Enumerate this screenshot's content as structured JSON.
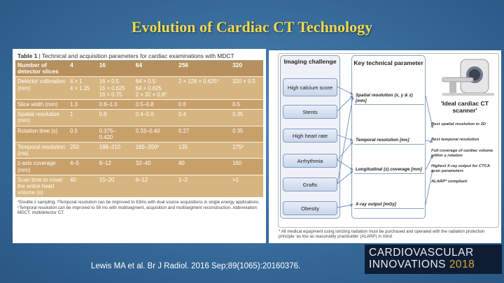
{
  "slide": {
    "title": "Evolution of Cardiac CT Technology",
    "reference": "Lewis MA et al. Br J Radiol. 2016 Sep;89(1065):20160376."
  },
  "table": {
    "caption_label": "Table 1",
    "caption_text": " | Technical and acquisition parameters for cardiac examinations with MDCT",
    "header": [
      "Number of detector slices",
      "4",
      "16",
      "64",
      "256",
      "320"
    ],
    "rows": [
      [
        "Detector collimation (mm)",
        "4 × 1\n4 × 1.25",
        "16 × 0.5\n16 × 0.625\n16 × 0.75",
        "64 × 0.5\n64 × 0.625\n2 × 32 × 0.6*",
        "2 × 128 × 0.625*",
        "320 × 0.5"
      ],
      [
        "Slice width (mm)",
        "1.3",
        "0.8–1.0",
        "0.5–0.8",
        "0.6",
        "0.5"
      ],
      [
        "Spatial resolution (mm)",
        "1",
        "0.6",
        "0.4–0.6",
        "0.4",
        "0.35"
      ],
      [
        "Rotation time (s)",
        "0.5",
        "0.375–\n0.420",
        "0.33–0.40",
        "0.27",
        "0.35"
      ],
      [
        "Temporal resolution (ms)",
        "250",
        "188–210",
        "165–200ᵇ",
        "135",
        "175ᵇ"
      ],
      [
        "z-axis coverage (mm)",
        "4–5",
        "8–12",
        "32–40",
        "80",
        "160"
      ],
      [
        "Scan time to cover the entire heart volume (s)",
        "40",
        "15–20",
        "6–12",
        "1–2",
        ">1"
      ]
    ],
    "footnote": "*Double z sampling. ᵇTemporal resolution can be improved to 83ms with dual source acquisitions in single energy applications. ᶜTemporal resolution can be improved to 58 ms with multisegment, acquisition and multisegment reconstruction. Abbreviation: MDCT, multidetector CT."
  },
  "diagram": {
    "imaging_challenge_title": "Imaging challenge",
    "key_parameter_title": "Key technical parameter",
    "challenges": [
      "High calcium score",
      "Stents",
      "High heart rate",
      "Arrhythmia",
      "Grafts",
      "Obesity"
    ],
    "parameters": [
      "Spatial resolution (x, y & z)[mm]",
      "Temporal resolution [ms]",
      "Longitudinal (z) coverage [mm]",
      "X-ray output [mGy]"
    ],
    "ideal_scanner_label": "'Ideal cardiac CT scanner'",
    "ideal_features": [
      "Best spatial resolution in 3D",
      "Best temporal resolution",
      "Full coverage of cardiac volume within a rotation",
      "Highest X-ray output for CTCA scan parameters",
      "ALARP* compliant"
    ],
    "footnote": "* All medical equipment using ionizing radiation must be purchased and operated with the radiation protection principle 'as low as reasonably practicable' (ALARP) in mind"
  },
  "logo": {
    "line1": "CARDIOVASCULAR",
    "line2": "INNOVATIONS",
    "year": "2018"
  },
  "colors": {
    "title": "#f2d94e",
    "background": "#3a6f9f",
    "table_row": "#d6b580",
    "box_blue": "#c9d6ea",
    "logo_year": "#d9a93c"
  }
}
